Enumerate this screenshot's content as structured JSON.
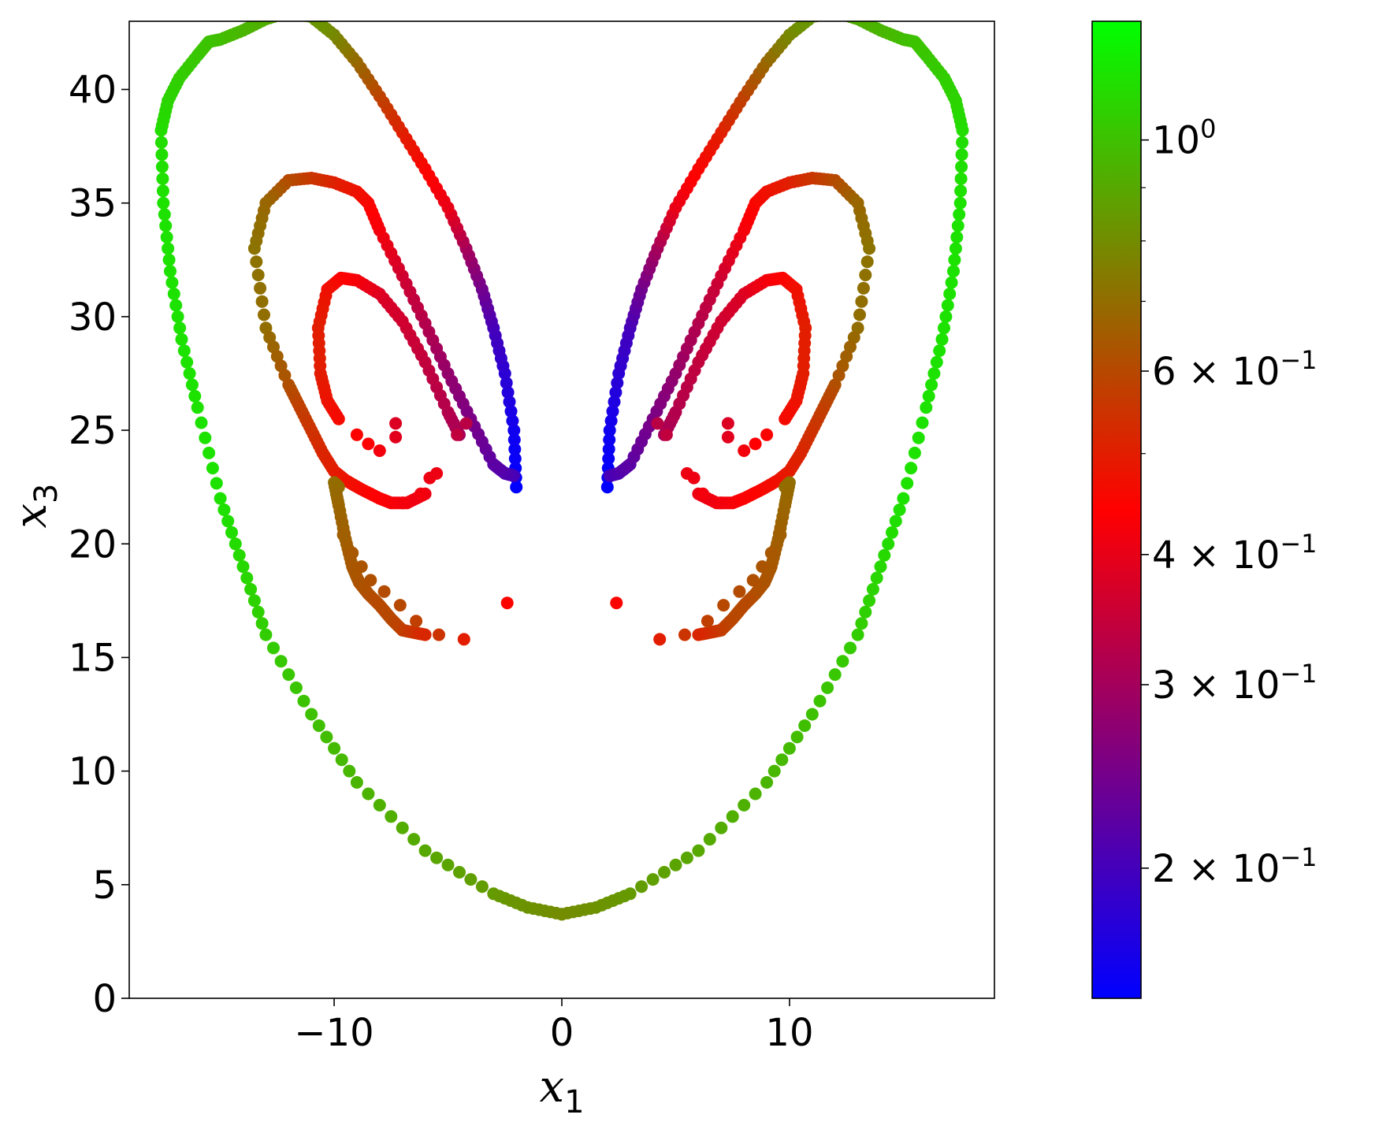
{
  "chart_data": {
    "type": "scatter",
    "title": "",
    "xlabel": {
      "base": "x",
      "sub": "1"
    },
    "ylabel": {
      "base": "x",
      "sub": "3"
    },
    "xlim": [
      -19,
      19
    ],
    "ylim": [
      0,
      43
    ],
    "x_ticks": [
      {
        "value": -10,
        "label": "−10"
      },
      {
        "value": 0,
        "label": "0"
      },
      {
        "value": 10,
        "label": "10"
      }
    ],
    "y_ticks": [
      {
        "value": 0,
        "label": "0"
      },
      {
        "value": 5,
        "label": "5"
      },
      {
        "value": 10,
        "label": "10"
      },
      {
        "value": 15,
        "label": "15"
      },
      {
        "value": 20,
        "label": "20"
      },
      {
        "value": 25,
        "label": "25"
      },
      {
        "value": 30,
        "label": "30"
      },
      {
        "value": 35,
        "label": "35"
      },
      {
        "value": 40,
        "label": "40"
      }
    ],
    "grid": false,
    "legend": "none",
    "colorbar": {
      "scale": "log",
      "range": [
        0.15,
        1.3
      ],
      "colors": [
        "#0000ff",
        "#ff0000",
        "#00ff00"
      ],
      "major_ticks": [
        {
          "value": 0.2,
          "mant": "2",
          "exp": "−1"
        },
        {
          "value": 0.3,
          "mant": "3",
          "exp": "−1"
        },
        {
          "value": 0.4,
          "mant": "4",
          "exp": "−1"
        },
        {
          "value": 0.6,
          "mant": "6",
          "exp": "−1"
        },
        {
          "value": 1.0,
          "mant": "",
          "exp": "0"
        }
      ],
      "minor_ticks": [
        0.5,
        0.7,
        0.8,
        0.9
      ]
    },
    "series": [
      {
        "x": [
          -2.0,
          -2.1,
          -2.5,
          -3.0,
          -3.5,
          -4.2,
          -5.0,
          -6.0,
          -7.0,
          -8.0,
          -9.0,
          -10.0,
          -11.0,
          -12.0,
          -13.0,
          -14.0,
          -15.0,
          -15.5,
          -16.0,
          -16.8,
          -17.3,
          -17.6,
          -17.5,
          -17.2,
          -16.7,
          -16.0,
          -15.0,
          -14.0,
          -13.0,
          -11.0,
          -9.0,
          -6.0,
          -3.0,
          -1.5,
          0.0
        ],
        "y": [
          22.5,
          25.0,
          27.5,
          29.5,
          31.2,
          33.0,
          34.8,
          36.5,
          38.1,
          39.7,
          41.2,
          42.4,
          43.2,
          43.4,
          43.1,
          42.6,
          42.2,
          42.1,
          41.5,
          40.5,
          39.5,
          38.2,
          35.0,
          32.0,
          29.0,
          26.0,
          22.0,
          19.0,
          16.0,
          12.5,
          9.5,
          6.5,
          4.6,
          4.0,
          3.7
        ],
        "c": [
          0.15,
          0.16,
          0.18,
          0.2,
          0.24,
          0.3,
          0.4,
          0.45,
          0.5,
          0.58,
          0.68,
          0.78,
          0.85,
          0.9,
          0.92,
          0.95,
          0.98,
          1.0,
          1.02,
          1.05,
          1.08,
          1.12,
          1.15,
          1.15,
          1.15,
          1.15,
          1.15,
          1.1,
          1.05,
          1.0,
          0.95,
          0.9,
          0.85,
          0.82,
          0.8
        ]
      },
      {
        "x": [
          -2.1,
          -2.5,
          -3.0,
          -4.0,
          -5.0,
          -6.0,
          -7.0,
          -8.0,
          -8.5,
          -9.0,
          -10.0,
          -11.0,
          -12.0,
          -13.0,
          -13.5,
          -13.0,
          -12.0,
          -11.5,
          -11.0,
          -10.5,
          -10.0,
          -9.5,
          -8.8,
          -8.0,
          -7.5,
          -6.8,
          -6.0
        ],
        "y": [
          23.0,
          23.1,
          23.5,
          25.5,
          27.5,
          29.7,
          31.8,
          33.8,
          35.0,
          35.5,
          35.9,
          36.1,
          36.0,
          35.0,
          33.0,
          29.5,
          27.0,
          26.0,
          25.0,
          24.0,
          23.2,
          22.8,
          22.4,
          22.0,
          21.8,
          21.8,
          22.2
        ],
        "c": [
          0.2,
          0.21,
          0.22,
          0.25,
          0.28,
          0.32,
          0.36,
          0.42,
          0.45,
          0.47,
          0.5,
          0.55,
          0.6,
          0.68,
          0.72,
          0.7,
          0.62,
          0.58,
          0.55,
          0.52,
          0.5,
          0.48,
          0.46,
          0.44,
          0.43,
          0.42,
          0.41
        ]
      },
      {
        "x": [
          -4.5,
          -5.0,
          -6.0,
          -7.0,
          -8.0,
          -9.0,
          -9.7,
          -10.3,
          -10.7,
          -10.6,
          -10.3,
          -9.8
        ],
        "y": [
          24.8,
          25.8,
          28.0,
          29.8,
          31.0,
          31.6,
          31.7,
          31.2,
          29.5,
          27.5,
          26.3,
          25.5
        ],
        "c": [
          0.3,
          0.32,
          0.34,
          0.36,
          0.38,
          0.42,
          0.44,
          0.47,
          0.5,
          0.5,
          0.48,
          0.46
        ]
      },
      {
        "x": [
          -9.8,
          -10.0,
          -9.8,
          -9.5,
          -9.2,
          -8.9,
          -8.5,
          -8.0,
          -7.5,
          -7.0,
          -6.5,
          -6.0
        ],
        "y": [
          22.5,
          22.7,
          21.7,
          20.2,
          19.0,
          18.3,
          17.8,
          17.3,
          16.7,
          16.2,
          16.1,
          16.0
        ],
        "c": [
          0.7,
          0.7,
          0.68,
          0.66,
          0.64,
          0.63,
          0.62,
          0.6,
          0.6,
          0.58,
          0.55,
          0.52
        ]
      }
    ],
    "scatter_points": [
      {
        "x": -9.0,
        "y": 24.8,
        "c": 0.45
      },
      {
        "x": -8.5,
        "y": 24.4,
        "c": 0.44
      },
      {
        "x": -8.0,
        "y": 24.1,
        "c": 0.42
      },
      {
        "x": -7.3,
        "y": 25.3,
        "c": 0.38
      },
      {
        "x": -7.3,
        "y": 24.7,
        "c": 0.39
      },
      {
        "x": -4.6,
        "y": 24.8,
        "c": 0.34
      },
      {
        "x": -4.2,
        "y": 25.3,
        "c": 0.33
      },
      {
        "x": -5.5,
        "y": 23.1,
        "c": 0.41
      },
      {
        "x": -5.8,
        "y": 22.9,
        "c": 0.41
      },
      {
        "x": -6.2,
        "y": 22.2,
        "c": 0.42
      },
      {
        "x": -7.0,
        "y": 21.8,
        "c": 0.42
      },
      {
        "x": -9.6,
        "y": 20.4,
        "c": 0.66
      },
      {
        "x": -9.2,
        "y": 19.6,
        "c": 0.64
      },
      {
        "x": -8.8,
        "y": 19.0,
        "c": 0.63
      },
      {
        "x": -8.4,
        "y": 18.4,
        "c": 0.62
      },
      {
        "x": -7.8,
        "y": 17.9,
        "c": 0.61
      },
      {
        "x": -7.1,
        "y": 17.3,
        "c": 0.6
      },
      {
        "x": -6.4,
        "y": 16.6,
        "c": 0.58
      },
      {
        "x": -5.4,
        "y": 16.0,
        "c": 0.55
      },
      {
        "x": -4.3,
        "y": 15.8,
        "c": 0.5
      },
      {
        "x": -2.4,
        "y": 17.4,
        "c": 0.45
      }
    ]
  }
}
